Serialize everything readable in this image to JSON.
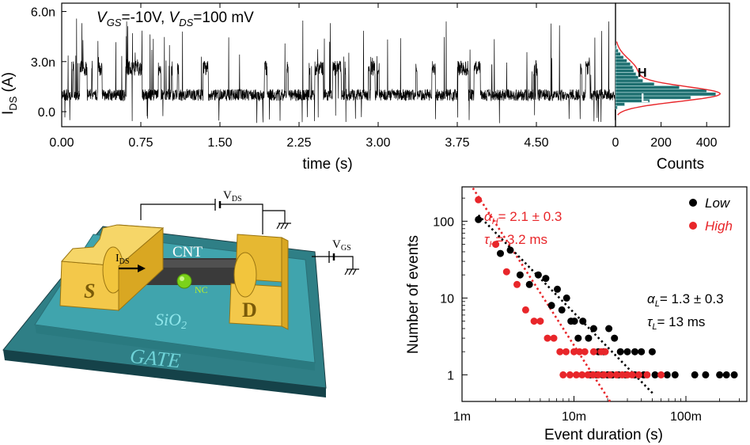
{
  "chart_data": [
    {
      "id": "trace",
      "type": "line",
      "title": "",
      "annotation_vgs": "V",
      "annotation_vgs_sub": "GS",
      "annotation_vgs_val": "=-10V, ",
      "annotation_vds": "V",
      "annotation_vds_sub": "DS",
      "annotation_vds_val": "=100 mV",
      "xlabel": "time (s)",
      "ylabel_main": "I",
      "ylabel_sub": "DS",
      "ylabel_unit": " (A)",
      "xlim": [
        0,
        5.25
      ],
      "ylim": [
        -0.9,
        6.5
      ],
      "x_ticks": [
        0,
        0.75,
        1.5,
        2.25,
        3.0,
        3.75,
        4.5
      ],
      "x_tick_labels": [
        "0.00",
        "0.75",
        "1.50",
        "2.25",
        "3.00",
        "3.75",
        "4.50"
      ],
      "y_ticks": [
        0,
        3,
        6
      ],
      "y_tick_labels": [
        "0.0",
        "3.0n",
        "6.0n"
      ],
      "low_level_nA": 1.0,
      "high_level_nA": 2.6,
      "segments": [
        {
          "t0": 0.0,
          "t1": 0.35,
          "dens": 1.0
        },
        {
          "t0": 0.35,
          "t1": 0.55,
          "dens": 0.4
        },
        {
          "t0": 0.55,
          "t1": 1.15,
          "dens": 1.0
        },
        {
          "t0": 1.15,
          "t1": 1.45,
          "dens": 0.5
        },
        {
          "t0": 1.45,
          "t1": 1.75,
          "dens": 0.9
        },
        {
          "t0": 1.75,
          "t1": 2.2,
          "dens": 0.15
        },
        {
          "t0": 2.2,
          "t1": 3.15,
          "dens": 0.6
        },
        {
          "t0": 3.15,
          "t1": 3.55,
          "dens": 0.1
        },
        {
          "t0": 3.55,
          "t1": 3.8,
          "dens": 0.45
        },
        {
          "t0": 3.8,
          "t1": 4.4,
          "dens": 0.2
        },
        {
          "t0": 4.4,
          "t1": 5.25,
          "dens": 0.55
        }
      ]
    },
    {
      "id": "histogram",
      "type": "bar",
      "orientation": "horizontal",
      "xlabel": "Counts",
      "xlim": [
        0,
        500
      ],
      "x_ticks": [
        0,
        200,
        400
      ],
      "x_tick_labels": [
        "0",
        "200",
        "400"
      ],
      "bins_nA": [
        0.25,
        0.45,
        0.65,
        0.85,
        1.05,
        1.25,
        1.45,
        1.65,
        1.85,
        2.05,
        2.25,
        2.45,
        2.65,
        2.85,
        3.05,
        3.25,
        3.45,
        3.65,
        3.85
      ],
      "counts": [
        8,
        40,
        150,
        330,
        440,
        400,
        280,
        170,
        120,
        100,
        90,
        80,
        75,
        65,
        50,
        35,
        22,
        12,
        5
      ],
      "label_high": "H",
      "label_low": "L",
      "fit_color": "#e8262a"
    },
    {
      "id": "scatter",
      "type": "scatter",
      "xscale": "log",
      "yscale": "log",
      "xlabel": "Event duration (s)",
      "ylabel": "Number of events",
      "xlim": [
        0.001,
        0.35
      ],
      "ylim": [
        0.45,
        280
      ],
      "x_ticks": [
        0.001,
        0.01,
        0.1
      ],
      "x_tick_labels": [
        "1m",
        "10m",
        "100m"
      ],
      "y_ticks": [
        1,
        10,
        100
      ],
      "y_tick_labels": [
        "1",
        "10",
        "100"
      ],
      "legend": [
        {
          "label": "Low",
          "color": "#000000"
        },
        {
          "label": "High",
          "color": "#e8262a"
        }
      ],
      "series": [
        {
          "name": "Low",
          "color": "#000000",
          "x": [
            0.0014,
            0.0022,
            0.0027,
            0.0033,
            0.004,
            0.0048,
            0.0056,
            0.0063,
            0.0071,
            0.0078,
            0.0086,
            0.0094,
            0.0101,
            0.0109,
            0.012,
            0.0135,
            0.015,
            0.0165,
            0.0185,
            0.0205,
            0.023,
            0.026,
            0.03,
            0.035,
            0.04,
            0.05,
            0.014,
            0.016,
            0.018,
            0.02,
            0.022,
            0.025,
            0.029,
            0.035,
            0.042,
            0.053,
            0.068,
            0.08,
            0.12,
            0.15,
            0.2,
            0.23,
            0.27
          ],
          "y": [
            105,
            38,
            42,
            20,
            15,
            20,
            18,
            8,
            13,
            7,
            10,
            5,
            5,
            3,
            5,
            3,
            4,
            2,
            2,
            4,
            3,
            2,
            2,
            2,
            2,
            2,
            1,
            1,
            1,
            1,
            1,
            1,
            1,
            1,
            1,
            1,
            1,
            1,
            1,
            1,
            1,
            1,
            1
          ]
        },
        {
          "name": "High",
          "color": "#e8262a",
          "x": [
            0.0014,
            0.002,
            0.0025,
            0.0031,
            0.0037,
            0.0044,
            0.005,
            0.0058,
            0.0066,
            0.0075,
            0.0085,
            0.01,
            0.0112,
            0.0125,
            0.015,
            0.0175,
            0.019,
            0.008,
            0.0092,
            0.0105,
            0.0118,
            0.0133,
            0.0148,
            0.0165,
            0.0185,
            0.021,
            0.024,
            0.027,
            0.03,
            0.033,
            0.038,
            0.045,
            0.06
          ],
          "y": [
            190,
            50,
            22,
            15,
            7,
            5,
            5,
            3,
            3,
            2,
            2,
            2,
            2,
            2,
            2,
            2,
            2,
            1,
            1,
            1,
            1,
            1,
            1,
            1,
            1,
            1,
            1,
            1,
            1,
            1,
            1,
            1,
            1
          ]
        }
      ],
      "fits": [
        {
          "name": "High fit",
          "color": "#e8262a",
          "x": [
            0.00125,
            0.021
          ],
          "y": [
            270,
            0.45
          ]
        },
        {
          "name": "Low fit",
          "color": "#000000",
          "x": [
            0.0014,
            0.052
          ],
          "y": [
            120,
            0.55
          ]
        }
      ],
      "annotation_high_alpha": "α",
      "annotation_high_alpha_sub": "H",
      "annotation_high_alpha_val": "= 2.1 ± 0.3",
      "annotation_high_tau": "τ",
      "annotation_high_tau_sub": "H",
      "annotation_high_tau_val": "= 3.2 ms",
      "annotation_low_alpha": "α",
      "annotation_low_alpha_sub": "L",
      "annotation_low_alpha_val": "= 1.3 ± 0.3",
      "annotation_low_tau": "τ",
      "annotation_low_tau_sub": "L",
      "annotation_low_tau_val": "= 13 ms"
    }
  ],
  "device": {
    "vds": "V",
    "vds_sub": "DS",
    "vgs": "V",
    "vgs_sub": "GS",
    "cnt": "CNT",
    "ids": "I",
    "ids_sub": "DS",
    "source": "S",
    "drain": "D",
    "nc": "NC",
    "sio2": "SiO",
    "sio2_sub": "2",
    "gate": "GATE"
  },
  "colors": {
    "black": "#000000",
    "red": "#e8262a",
    "gold": "#f2c53d",
    "teal": "#3e9aa2",
    "dark_teal": "#1a4f57",
    "nc_green": "#7bd21a",
    "hist_fill": "#1e6f70"
  }
}
